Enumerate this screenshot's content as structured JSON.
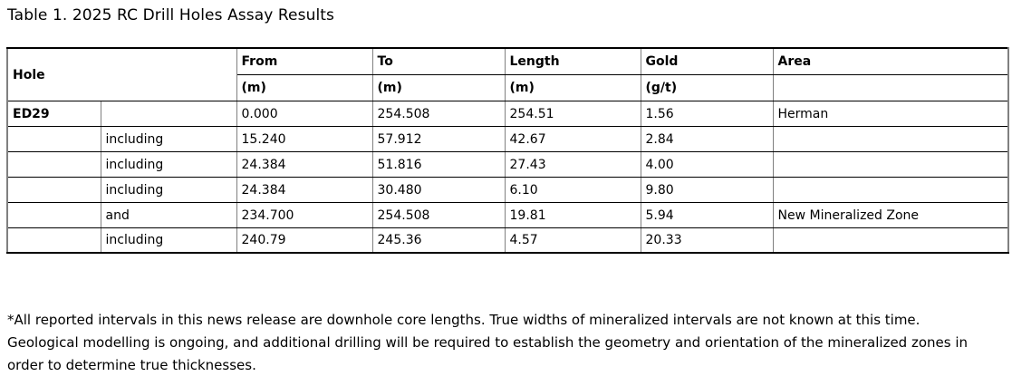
{
  "title": "Table 1. 2025 RC Drill Holes Assay Results",
  "table": {
    "header": {
      "hole": "Hole",
      "columns": [
        {
          "key": "from",
          "label": "From",
          "unit": "(m)"
        },
        {
          "key": "to",
          "label": "To",
          "unit": "(m)"
        },
        {
          "key": "length",
          "label": "Length",
          "unit": "(m)"
        },
        {
          "key": "gold",
          "label": "Gold",
          "unit": "(g/t)"
        },
        {
          "key": "area",
          "label": "Area",
          "unit": ""
        }
      ]
    },
    "rows": [
      {
        "hole": "ED29",
        "qualifier": "",
        "from": "0.000",
        "to": "254.508",
        "length": "254.51",
        "gold": "1.56",
        "area": "Herman"
      },
      {
        "hole": "",
        "qualifier": "including",
        "from": "15.240",
        "to": "57.912",
        "length": "42.67",
        "gold": "2.84",
        "area": ""
      },
      {
        "hole": "",
        "qualifier": "including",
        "from": "24.384",
        "to": "51.816",
        "length": "27.43",
        "gold": "4.00",
        "area": ""
      },
      {
        "hole": "",
        "qualifier": "including",
        "from": "24.384",
        "to": "30.480",
        "length": "6.10",
        "gold": "9.80",
        "area": ""
      },
      {
        "hole": "",
        "qualifier": "and",
        "from": "234.700",
        "to": "254.508",
        "length": "19.81",
        "gold": "5.94",
        "area": "New Mineralized Zone"
      },
      {
        "hole": "",
        "qualifier": "including",
        "from": "240.79",
        "to": "245.36",
        "length": "4.57",
        "gold": "20.33",
        "area": ""
      }
    ]
  },
  "footnote": "*All reported intervals in this news release are downhole core lengths. True widths of mineralized intervals are not known at this time. Geological modelling is ongoing, and additional drilling will be required to establish the geometry and orientation of the mineralized zones in order to determine true thicknesses."
}
